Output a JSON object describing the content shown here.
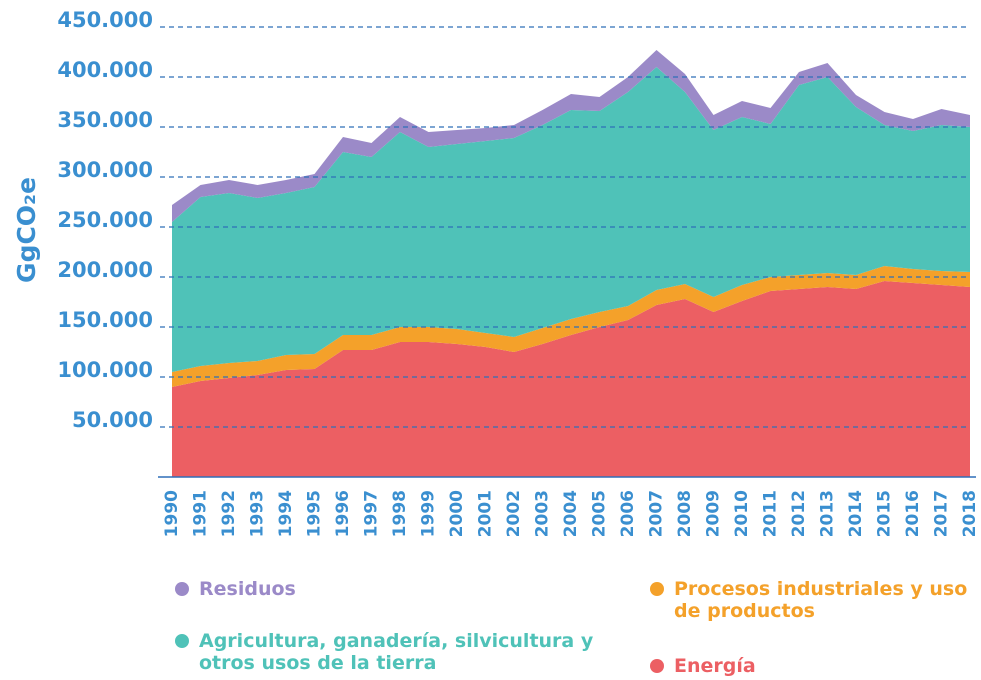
{
  "chart_data": {
    "type": "stacked_area",
    "ylabel": "GgCO₂e",
    "categories": [
      "1990",
      "1991",
      "1992",
      "1993",
      "1994",
      "1995",
      "1996",
      "1997",
      "1998",
      "1999",
      "2000",
      "2001",
      "2002",
      "2003",
      "2004",
      "2005",
      "2006",
      "2007",
      "2008",
      "2009",
      "2010",
      "2011",
      "2012",
      "2013",
      "2014",
      "2015",
      "2016",
      "2017",
      "2018"
    ],
    "series": [
      {
        "name": "Energía",
        "color": "#ec5f63",
        "values": [
          90000,
          96000,
          99000,
          102000,
          107000,
          108000,
          127000,
          127000,
          135000,
          135000,
          133000,
          130000,
          125000,
          133000,
          142000,
          150000,
          157000,
          172000,
          178000,
          165000,
          176000,
          186000,
          188000,
          190000,
          188000,
          196000,
          194000,
          192000,
          190000
        ]
      },
      {
        "name": "Procesos industriales y uso de productos",
        "color": "#f4a12a",
        "values": [
          15000,
          15000,
          15000,
          14000,
          15000,
          15000,
          15000,
          15000,
          15000,
          15000,
          15000,
          14000,
          15000,
          16000,
          16000,
          15000,
          14000,
          15000,
          15000,
          15000,
          16000,
          14000,
          14000,
          14000,
          14000,
          15000,
          14000,
          14000,
          15000
        ]
      },
      {
        "name": "Agricultura, ganadería, silvicultura y otros usos de la tierra",
        "color": "#4fc2b8",
        "values": [
          150000,
          169000,
          170000,
          163000,
          162000,
          167000,
          183000,
          178000,
          195000,
          180000,
          185000,
          192000,
          199000,
          203000,
          209000,
          201000,
          214000,
          223000,
          192000,
          167000,
          168000,
          153000,
          190000,
          196000,
          168000,
          141000,
          138000,
          146000,
          145000
        ]
      },
      {
        "name": "Residuos",
        "color": "#9b8ac8",
        "values": [
          17000,
          12000,
          13000,
          13000,
          13000,
          13000,
          15000,
          14000,
          15000,
          15000,
          14000,
          13000,
          13000,
          15000,
          16000,
          14000,
          15000,
          17000,
          18000,
          15000,
          16000,
          16000,
          13000,
          14000,
          12000,
          13000,
          12000,
          16000,
          12000
        ]
      }
    ],
    "ylim": [
      0,
      450000
    ],
    "yticks": [
      {
        "value": 50000,
        "label": "50.000"
      },
      {
        "value": 100000,
        "label": "100.000"
      },
      {
        "value": 150000,
        "label": "150.000"
      },
      {
        "value": 200000,
        "label": "200.000"
      },
      {
        "value": 250000,
        "label": "250.000"
      },
      {
        "value": 300000,
        "label": "300.000"
      },
      {
        "value": 350000,
        "label": "350.000"
      },
      {
        "value": 400000,
        "label": "400.000"
      },
      {
        "value": 450000,
        "label": "450.000"
      }
    ],
    "grid": true
  }
}
